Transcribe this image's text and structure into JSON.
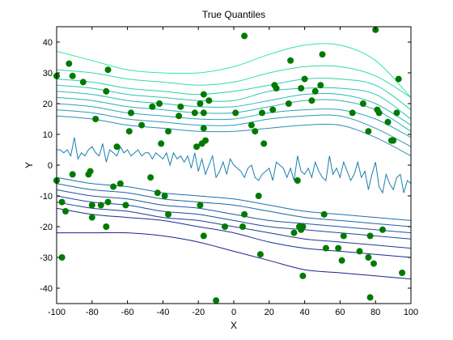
{
  "chart_data": {
    "type": "scatter",
    "title": "True Quantiles",
    "xlabel": "X",
    "ylabel": "Y",
    "xlim": [
      -100,
      100
    ],
    "ylim": [
      -45,
      45
    ],
    "xticks": [
      -100,
      -80,
      -60,
      -40,
      -20,
      0,
      20,
      40,
      60,
      80,
      100
    ],
    "yticks": [
      -40,
      -30,
      -20,
      -10,
      0,
      10,
      20,
      30,
      40
    ],
    "grid": false,
    "legend": "none",
    "colors": {
      "points": "#007a00",
      "upper_curves": [
        "#2a8fb8",
        "#2a9ab8",
        "#2aa5b8",
        "#2ab0b8",
        "#2abbb5",
        "#2ac6b0",
        "#2ad1aa",
        "#30dca4",
        "#36e79e"
      ],
      "middle_curve": "#1a7fb0",
      "lower_curves": [
        "#1f6fae",
        "#1e62a8",
        "#1d55a2",
        "#1c489c",
        "#1b3b96",
        "#1a2e90",
        "#1a238a"
      ]
    },
    "points": [
      {
        "x": -100,
        "y": 29
      },
      {
        "x": -100,
        "y": -5
      },
      {
        "x": -97,
        "y": -12
      },
      {
        "x": -97,
        "y": -30
      },
      {
        "x": -95,
        "y": -15
      },
      {
        "x": -93,
        "y": 33
      },
      {
        "x": -91,
        "y": 29
      },
      {
        "x": -91,
        "y": -3
      },
      {
        "x": -85,
        "y": 27
      },
      {
        "x": -82,
        "y": -3
      },
      {
        "x": -81,
        "y": -2
      },
      {
        "x": -80,
        "y": -13
      },
      {
        "x": -80,
        "y": -17
      },
      {
        "x": -78,
        "y": 15
      },
      {
        "x": -75,
        "y": -13
      },
      {
        "x": -72,
        "y": 24
      },
      {
        "x": -72,
        "y": -20
      },
      {
        "x": -71,
        "y": -12
      },
      {
        "x": -71,
        "y": 31
      },
      {
        "x": -68,
        "y": -7
      },
      {
        "x": -66,
        "y": 6
      },
      {
        "x": -64,
        "y": -6
      },
      {
        "x": -61,
        "y": -13
      },
      {
        "x": -59,
        "y": 11
      },
      {
        "x": -58,
        "y": 17
      },
      {
        "x": -52,
        "y": 13
      },
      {
        "x": -47,
        "y": -4
      },
      {
        "x": -46,
        "y": 19
      },
      {
        "x": -43,
        "y": -9
      },
      {
        "x": -42,
        "y": 20
      },
      {
        "x": -41,
        "y": 7
      },
      {
        "x": -39,
        "y": -10
      },
      {
        "x": -37,
        "y": 11
      },
      {
        "x": -37,
        "y": -16
      },
      {
        "x": -31,
        "y": 16
      },
      {
        "x": -30,
        "y": 19
      },
      {
        "x": -22,
        "y": 17
      },
      {
        "x": -21,
        "y": 6
      },
      {
        "x": -19,
        "y": 20
      },
      {
        "x": -19,
        "y": -13
      },
      {
        "x": -18,
        "y": 7
      },
      {
        "x": -17,
        "y": 23
      },
      {
        "x": -17,
        "y": 12
      },
      {
        "x": -17,
        "y": 17
      },
      {
        "x": -17,
        "y": -23
      },
      {
        "x": -16,
        "y": 8
      },
      {
        "x": -14,
        "y": 21
      },
      {
        "x": -10,
        "y": -44
      },
      {
        "x": -5,
        "y": -20
      },
      {
        "x": 1,
        "y": 17
      },
      {
        "x": 5,
        "y": -20
      },
      {
        "x": 6,
        "y": 42
      },
      {
        "x": 6,
        "y": -16
      },
      {
        "x": 10,
        "y": 13
      },
      {
        "x": 12,
        "y": 11
      },
      {
        "x": 14,
        "y": -10
      },
      {
        "x": 15,
        "y": -29
      },
      {
        "x": 16,
        "y": 17
      },
      {
        "x": 17,
        "y": 7
      },
      {
        "x": 22,
        "y": 18
      },
      {
        "x": 23,
        "y": 26
      },
      {
        "x": 24,
        "y": 25
      },
      {
        "x": 31,
        "y": 20
      },
      {
        "x": 32,
        "y": 34
      },
      {
        "x": 34,
        "y": -22
      },
      {
        "x": 36,
        "y": -5
      },
      {
        "x": 37,
        "y": -20
      },
      {
        "x": 38,
        "y": -21
      },
      {
        "x": 38,
        "y": 25
      },
      {
        "x": 39,
        "y": -36
      },
      {
        "x": 39,
        "y": -20
      },
      {
        "x": 40,
        "y": 28
      },
      {
        "x": 44,
        "y": 21
      },
      {
        "x": 46,
        "y": 24
      },
      {
        "x": 49,
        "y": 26
      },
      {
        "x": 50,
        "y": 36
      },
      {
        "x": 51,
        "y": -16
      },
      {
        "x": 52,
        "y": -27
      },
      {
        "x": 59,
        "y": -27
      },
      {
        "x": 61,
        "y": -31
      },
      {
        "x": 62,
        "y": -23
      },
      {
        "x": 67,
        "y": 17
      },
      {
        "x": 71,
        "y": -28
      },
      {
        "x": 73,
        "y": 20
      },
      {
        "x": 76,
        "y": 11
      },
      {
        "x": 76,
        "y": -30
      },
      {
        "x": 77,
        "y": -23
      },
      {
        "x": 77,
        "y": -43
      },
      {
        "x": 79,
        "y": -32
      },
      {
        "x": 80,
        "y": 44
      },
      {
        "x": 81,
        "y": 18
      },
      {
        "x": 82,
        "y": 17
      },
      {
        "x": 84,
        "y": -21
      },
      {
        "x": 87,
        "y": 14
      },
      {
        "x": 89,
        "y": 8
      },
      {
        "x": 90,
        "y": 8
      },
      {
        "x": 92,
        "y": 17
      },
      {
        "x": 93,
        "y": 28
      },
      {
        "x": 95,
        "y": -35
      }
    ],
    "upper_curves": [
      {
        "x": [
          -100,
          -80,
          -60,
          -40,
          -20,
          0,
          20,
          40,
          60,
          80,
          100
        ],
        "y": [
          16,
          15,
          13,
          12,
          11,
          11,
          12,
          13,
          13,
          9,
          3
        ]
      },
      {
        "x": [
          -100,
          -80,
          -60,
          -40,
          -20,
          0,
          20,
          40,
          60,
          80,
          100
        ],
        "y": [
          18,
          17,
          15,
          14,
          13,
          13,
          15,
          16,
          16,
          12,
          6
        ]
      },
      {
        "x": [
          -100,
          -80,
          -60,
          -40,
          -20,
          0,
          20,
          40,
          60,
          80,
          100
        ],
        "y": [
          20,
          19,
          17,
          16,
          15,
          15,
          17,
          18,
          18,
          15,
          9
        ]
      },
      {
        "x": [
          -100,
          -80,
          -60,
          -40,
          -20,
          0,
          20,
          40,
          60,
          80,
          100
        ],
        "y": [
          22,
          21,
          19,
          18,
          17,
          17,
          19,
          21,
          21,
          18,
          11
        ]
      },
      {
        "x": [
          -100,
          -80,
          -60,
          -40,
          -20,
          0,
          20,
          40,
          60,
          80,
          100
        ],
        "y": [
          24,
          23,
          21,
          20,
          19,
          19,
          21,
          23,
          23,
          20,
          13
        ]
      },
      {
        "x": [
          -100,
          -80,
          -60,
          -40,
          -20,
          0,
          20,
          40,
          60,
          80,
          100
        ],
        "y": [
          26,
          25,
          23,
          22,
          21,
          21,
          24,
          25,
          25,
          23,
          15
        ]
      },
      {
        "x": [
          -100,
          -80,
          -60,
          -40,
          -20,
          0,
          20,
          40,
          60,
          80,
          100
        ],
        "y": [
          28,
          27,
          25,
          24,
          23,
          24,
          26,
          28,
          28,
          26,
          18
        ]
      },
      {
        "x": [
          -100,
          -80,
          -60,
          -40,
          -20,
          0,
          20,
          40,
          60,
          80,
          100
        ],
        "y": [
          31,
          30,
          28,
          27,
          26,
          27,
          30,
          32,
          32,
          29,
          22
        ]
      },
      {
        "x": [
          -100,
          -80,
          -60,
          -40,
          -20,
          0,
          20,
          40,
          60,
          80,
          100
        ],
        "y": [
          37,
          34,
          31,
          30,
          30,
          32,
          36,
          39,
          39,
          34,
          22
        ]
      }
    ],
    "middle_curve": {
      "x": [
        -100,
        -98,
        -96,
        -94,
        -92,
        -90,
        -88,
        -86,
        -84,
        -82,
        -80,
        -78,
        -76,
        -74,
        -72,
        -70,
        -68,
        -66,
        -64,
        -62,
        -60,
        -58,
        -56,
        -54,
        -52,
        -50,
        -48,
        -46,
        -44,
        -42,
        -40,
        -38,
        -36,
        -34,
        -32,
        -30,
        -28,
        -26,
        -24,
        -22,
        -20,
        -18,
        -16,
        -14,
        -12,
        -10,
        -8,
        -6,
        -4,
        -2,
        0,
        2,
        4,
        6,
        8,
        10,
        12,
        14,
        16,
        18,
        20,
        22,
        24,
        26,
        28,
        30,
        32,
        34,
        36,
        38,
        40,
        42,
        44,
        46,
        48,
        50,
        52,
        54,
        56,
        58,
        60,
        62,
        64,
        66,
        68,
        70,
        72,
        74,
        76,
        78,
        80,
        82,
        84,
        86,
        88,
        90,
        92,
        94,
        96,
        98,
        100
      ],
      "y": [
        5,
        5,
        4,
        5,
        3,
        9,
        2,
        4,
        3,
        5,
        6,
        4,
        3,
        7,
        1,
        5,
        4,
        3,
        6,
        4,
        5,
        3,
        4,
        5,
        3,
        4,
        4,
        2,
        4,
        3,
        2,
        4,
        0,
        4,
        2,
        3,
        1,
        3,
        -1,
        4,
        -2,
        2,
        -3,
        0,
        3,
        -4,
        -2,
        1,
        -3,
        2,
        0,
        -1,
        -2,
        -4,
        -1,
        0,
        -4,
        -5,
        -3,
        -2,
        -1,
        -5,
        1,
        0,
        -1,
        -4,
        -1,
        -5,
        3,
        -2,
        -3,
        -1,
        -4,
        1,
        -2,
        -4,
        -5,
        3,
        -3,
        -1,
        -4,
        1,
        -2,
        -5,
        -3,
        1,
        -4,
        -2,
        -8,
        -3,
        1,
        -7,
        -9,
        -3,
        -6,
        -8,
        -4,
        -3,
        -9,
        -5,
        -6
      ]
    },
    "lower_curves": [
      {
        "x": [
          -100,
          -80,
          -60,
          -40,
          -20,
          0,
          20,
          40,
          60,
          80,
          100
        ],
        "y": [
          -4,
          -6,
          -7,
          -9,
          -10,
          -11,
          -13,
          -15,
          -16,
          -17,
          -18
        ]
      },
      {
        "x": [
          -100,
          -80,
          -60,
          -40,
          -20,
          0,
          20,
          40,
          60,
          80,
          100
        ],
        "y": [
          -6,
          -8,
          -9,
          -11,
          -12,
          -13,
          -15,
          -17,
          -18,
          -19,
          -20
        ]
      },
      {
        "x": [
          -100,
          -80,
          -60,
          -40,
          -20,
          0,
          20,
          40,
          60,
          80,
          100
        ],
        "y": [
          -8,
          -10,
          -11,
          -13,
          -14,
          -16,
          -18,
          -19,
          -20,
          -21,
          -22
        ]
      },
      {
        "x": [
          -100,
          -80,
          -60,
          -40,
          -20,
          0,
          20,
          40,
          60,
          80,
          100
        ],
        "y": [
          -10,
          -12,
          -13,
          -15,
          -16,
          -18,
          -20,
          -21,
          -22,
          -23,
          -24
        ]
      },
      {
        "x": [
          -100,
          -80,
          -60,
          -40,
          -20,
          0,
          20,
          40,
          60,
          80,
          100
        ],
        "y": [
          -12,
          -14,
          -15,
          -17,
          -18,
          -20,
          -22,
          -24,
          -25,
          -26,
          -27
        ]
      },
      {
        "x": [
          -100,
          -80,
          -60,
          -40,
          -20,
          0,
          20,
          40,
          60,
          80,
          100
        ],
        "y": [
          -14,
          -16,
          -17,
          -18,
          -20,
          -22,
          -25,
          -27,
          -28,
          -29,
          -30
        ]
      },
      {
        "x": [
          -100,
          -80,
          -60,
          -40,
          -20,
          0,
          20,
          40,
          60,
          80,
          100
        ],
        "y": [
          -22,
          -22,
          -22,
          -23,
          -25,
          -28,
          -31,
          -34,
          -35,
          -36,
          -37
        ]
      }
    ]
  }
}
